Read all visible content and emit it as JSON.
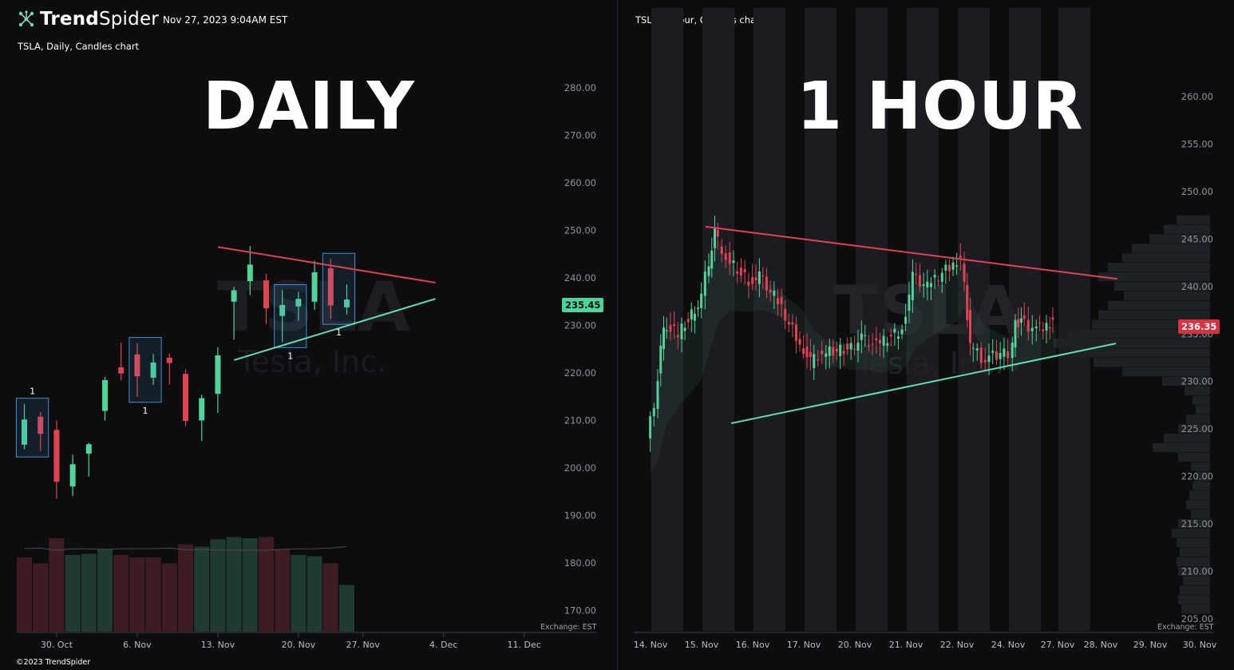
{
  "brand": {
    "name_bold": "Trend",
    "name_rest": "Spider",
    "datetime": "Nov 27, 2023 9:04AM EST",
    "copyright": "©2023 TrendSpider",
    "logo_icon": "network-nodes-icon"
  },
  "colors": {
    "up": "#4fd49a",
    "down": "#e04352",
    "resistance": "#e04352",
    "support": "#5fe0b0",
    "highlight_box": "#3a8fd6",
    "background": "#0d0d10"
  },
  "daily": {
    "chart_label": "TSLA, Daily, Candles chart",
    "big_title": "DAILY",
    "watermark_symbol": "TSLA",
    "watermark_name": "Tesla, Inc.",
    "last_price": "235.45",
    "exchange": "Exchange: EST",
    "inside_bar_mark": "1"
  },
  "hourly": {
    "chart_label": "TSLA, 1 hour, Candles chart",
    "big_title": "1 HOUR",
    "watermark_symbol": "TSLA",
    "watermark_name": "Tesla, Inc.",
    "last_price": "236.35",
    "exchange": "Exchange: EST"
  },
  "chart_data": [
    {
      "type": "candlestick",
      "title": "TSLA, Daily, Candles chart",
      "y_axis_ticks": [
        280,
        270,
        260,
        250,
        240,
        230,
        220,
        210,
        200,
        190,
        180,
        170
      ],
      "ylim": [
        166,
        285
      ],
      "x_tick_labels": [
        "30. Oct",
        "6. Nov",
        "13. Nov",
        "20. Nov",
        "27. Nov",
        "4. Dec",
        "11. Dec"
      ],
      "candles": [
        {
          "date": "2023-10-26",
          "o": 204.9,
          "h": 213.5,
          "l": 203.9,
          "c": 210.2
        },
        {
          "date": "2023-10-27",
          "o": 210.8,
          "h": 211.8,
          "l": 203.5,
          "c": 207.2
        },
        {
          "date": "2023-10-30",
          "o": 208.0,
          "h": 210.0,
          "l": 193.5,
          "c": 197.1
        },
        {
          "date": "2023-10-31",
          "o": 196.1,
          "h": 202.8,
          "l": 194.1,
          "c": 200.8
        },
        {
          "date": "2023-11-01",
          "o": 203.0,
          "h": 205.3,
          "l": 198.2,
          "c": 205.0
        },
        {
          "date": "2023-11-02",
          "o": 212.0,
          "h": 219.2,
          "l": 210.0,
          "c": 218.5
        },
        {
          "date": "2023-11-03",
          "o": 221.2,
          "h": 226.4,
          "l": 218.4,
          "c": 219.9
        },
        {
          "date": "2023-11-06",
          "o": 223.9,
          "h": 226.3,
          "l": 215.0,
          "c": 219.3
        },
        {
          "date": "2023-11-07",
          "o": 219.0,
          "h": 224.0,
          "l": 217.5,
          "c": 222.2
        },
        {
          "date": "2023-11-08",
          "o": 223.2,
          "h": 224.1,
          "l": 217.6,
          "c": 222.1
        },
        {
          "date": "2023-11-09",
          "o": 219.8,
          "h": 220.8,
          "l": 208.8,
          "c": 209.9
        },
        {
          "date": "2023-11-10",
          "o": 210.0,
          "h": 215.4,
          "l": 205.7,
          "c": 214.7
        },
        {
          "date": "2023-11-13",
          "o": 215.6,
          "h": 225.4,
          "l": 211.6,
          "c": 223.7
        },
        {
          "date": "2023-11-14",
          "o": 235.0,
          "h": 238.1,
          "l": 227.0,
          "c": 237.4
        },
        {
          "date": "2023-11-15",
          "o": 239.3,
          "h": 246.7,
          "l": 236.4,
          "c": 242.8
        },
        {
          "date": "2023-11-16",
          "o": 239.5,
          "h": 240.9,
          "l": 230.3,
          "c": 233.6
        },
        {
          "date": "2023-11-17",
          "o": 232.0,
          "h": 237.4,
          "l": 226.5,
          "c": 234.3
        },
        {
          "date": "2023-11-20",
          "o": 234.0,
          "h": 237.1,
          "l": 231.0,
          "c": 235.6
        },
        {
          "date": "2023-11-21",
          "o": 235.0,
          "h": 243.6,
          "l": 233.3,
          "c": 241.2
        },
        {
          "date": "2023-11-22",
          "o": 242.0,
          "h": 244.0,
          "l": 231.4,
          "c": 234.2
        },
        {
          "date": "2023-11-24",
          "o": 233.8,
          "h": 238.6,
          "l": 232.3,
          "c": 235.45
        }
      ],
      "volume_bars": [
        {
          "date": "2023-10-26",
          "dir": "down",
          "rel": 0.62
        },
        {
          "date": "2023-10-27",
          "dir": "down",
          "rel": 0.57
        },
        {
          "date": "2023-10-30",
          "dir": "down",
          "rel": 0.78
        },
        {
          "date": "2023-10-31",
          "dir": "up",
          "rel": 0.64
        },
        {
          "date": "2023-11-01",
          "dir": "up",
          "rel": 0.65
        },
        {
          "date": "2023-11-02",
          "dir": "up",
          "rel": 0.69
        },
        {
          "date": "2023-11-03",
          "dir": "down",
          "rel": 0.64
        },
        {
          "date": "2023-11-06",
          "dir": "down",
          "rel": 0.62
        },
        {
          "date": "2023-11-07",
          "dir": "down",
          "rel": 0.62
        },
        {
          "date": "2023-11-08",
          "dir": "down",
          "rel": 0.57
        },
        {
          "date": "2023-11-09",
          "dir": "down",
          "rel": 0.73
        },
        {
          "date": "2023-11-10",
          "dir": "up",
          "rel": 0.71
        },
        {
          "date": "2023-11-13",
          "dir": "up",
          "rel": 0.77
        },
        {
          "date": "2023-11-14",
          "dir": "up",
          "rel": 0.79
        },
        {
          "date": "2023-11-15",
          "dir": "up",
          "rel": 0.78
        },
        {
          "date": "2023-11-16",
          "dir": "down",
          "rel": 0.79
        },
        {
          "date": "2023-11-17",
          "dir": "down",
          "rel": 0.69
        },
        {
          "date": "2023-11-20",
          "dir": "up",
          "rel": 0.64
        },
        {
          "date": "2023-11-21",
          "dir": "up",
          "rel": 0.63
        },
        {
          "date": "2023-11-22",
          "dir": "down",
          "rel": 0.57
        },
        {
          "date": "2023-11-24",
          "dir": "up",
          "rel": 0.39
        }
      ],
      "inside_bar_groups": [
        {
          "from": "2023-10-26",
          "to": "2023-10-27",
          "label": "1"
        },
        {
          "from": "2023-11-06",
          "to": "2023-11-07",
          "label": "1"
        },
        {
          "from": "2023-11-17",
          "to": "2023-11-20",
          "label": "1"
        },
        {
          "from": "2023-11-22",
          "to": "2023-11-24",
          "label": "1"
        }
      ],
      "trendlines": [
        {
          "name": "resistance",
          "from": {
            "date": "2023-11-14",
            "price": 246.5
          },
          "to": {
            "date": "2023-12-01",
            "price": 239.0
          }
        },
        {
          "name": "support",
          "from": {
            "date": "2023-11-15",
            "price": 222.7
          },
          "to": {
            "date": "2023-12-01",
            "price": 235.6
          }
        }
      ]
    },
    {
      "type": "candlestick",
      "title": "TSLA, 1 hour, Candles chart",
      "y_axis_ticks": [
        260,
        255,
        250,
        245,
        240,
        235,
        230,
        225,
        220,
        215,
        210,
        205
      ],
      "ylim": [
        204,
        264
      ],
      "x_tick_labels": [
        "14. Nov",
        "15. Nov",
        "16. Nov",
        "17. Nov",
        "20. Nov",
        "21. Nov",
        "22. Nov",
        "24. Nov",
        "27. Nov",
        "28. Nov",
        "29. Nov",
        "30. Nov"
      ],
      "trendlines": [
        {
          "name": "resistance",
          "from": {
            "date": "2023-11-15",
            "price": 246.3
          },
          "to": {
            "date": "2023-11-28",
            "price": 240.8
          }
        },
        {
          "name": "support",
          "from": {
            "date": "2023-11-15",
            "price": 225.6
          },
          "to": {
            "date": "2023-11-28",
            "price": 234.0
          }
        }
      ],
      "hourly_path": [
        {
          "t": "2023-11-14 09:30",
          "price": 224
        },
        {
          "t": "2023-11-14 12:00",
          "price": 227.5
        },
        {
          "t": "2023-11-14 15:00",
          "price": 236
        },
        {
          "t": "2023-11-14 20:00",
          "price": 235
        },
        {
          "t": "2023-11-15 09:30",
          "price": 238
        },
        {
          "t": "2023-11-15 12:00",
          "price": 241
        },
        {
          "t": "2023-11-15 15:00",
          "price": 245.5
        },
        {
          "t": "2023-11-15 19:00",
          "price": 243
        },
        {
          "t": "2023-11-16 09:30",
          "price": 240.5
        },
        {
          "t": "2023-11-16 13:00",
          "price": 241
        },
        {
          "t": "2023-11-16 18:00",
          "price": 239
        },
        {
          "t": "2023-11-17 09:30",
          "price": 234
        },
        {
          "t": "2023-11-17 13:00",
          "price": 232
        },
        {
          "t": "2023-11-17 17:00",
          "price": 233
        },
        {
          "t": "2023-11-20 09:30",
          "price": 233.5
        },
        {
          "t": "2023-11-20 13:00",
          "price": 234.5
        },
        {
          "t": "2023-11-20 18:00",
          "price": 233.8
        },
        {
          "t": "2023-11-21 09:30",
          "price": 235.5
        },
        {
          "t": "2023-11-21 13:00",
          "price": 241
        },
        {
          "t": "2023-11-21 18:00",
          "price": 240
        },
        {
          "t": "2023-11-22 09:30",
          "price": 242.5
        },
        {
          "t": "2023-11-22 12:00",
          "price": 243
        },
        {
          "t": "2023-11-22 15:00",
          "price": 234
        },
        {
          "t": "2023-11-22 19:00",
          "price": 232.5
        },
        {
          "t": "2023-11-24 09:30",
          "price": 233
        },
        {
          "t": "2023-11-24 11:00",
          "price": 232
        },
        {
          "t": "2023-11-24 13:00",
          "price": 236
        },
        {
          "t": "2023-11-24 15:00",
          "price": 236.5
        },
        {
          "t": "2023-11-24 19:00",
          "price": 235.5
        },
        {
          "t": "2023-11-27 07:00",
          "price": 236
        },
        {
          "t": "2023-11-27 09:00",
          "price": 236.35
        }
      ],
      "volume_profile_note": "horizontal volume-at-price histogram along right axis; largest node near 232–236"
    }
  ]
}
